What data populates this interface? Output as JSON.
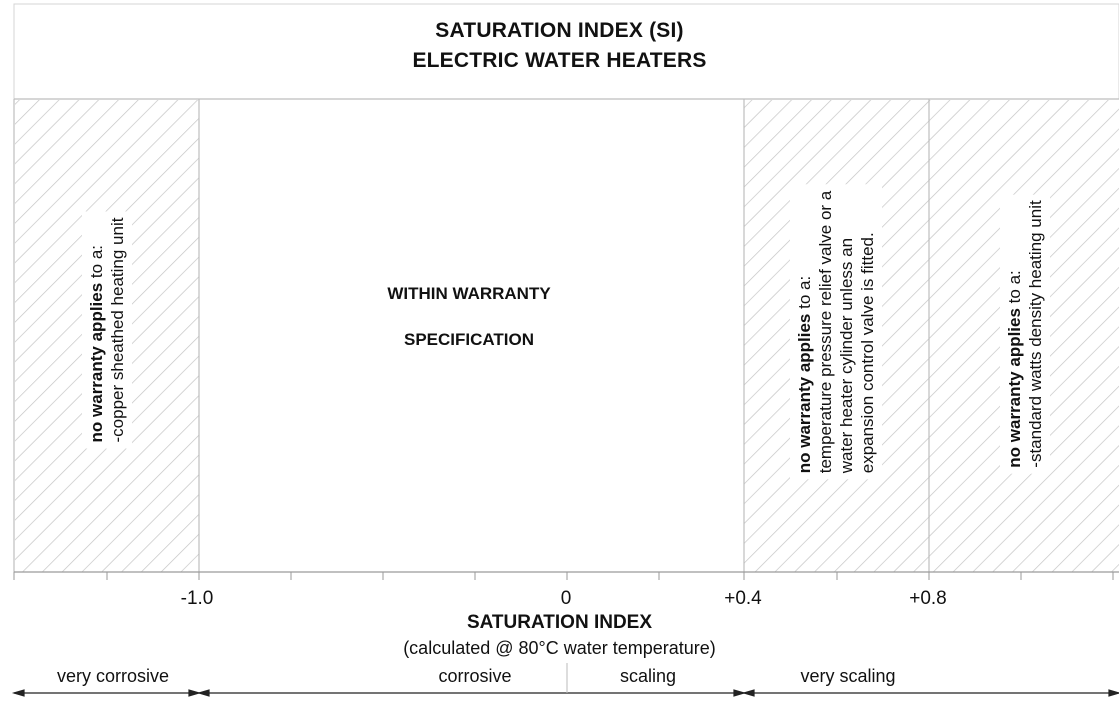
{
  "title": {
    "line1": "SATURATION INDEX (SI)",
    "line2": "ELECTRIC WATER HEATERS"
  },
  "zones": {
    "left": {
      "bold": "no warranty applies",
      "rest": " to a:",
      "line2": "-copper sheathed heating unit"
    },
    "center": {
      "line1": "WITHIN WARRANTY",
      "line2": "SPECIFICATION"
    },
    "right1": {
      "bold": "no warranty applies",
      "rest": " to a:",
      "line2": "temperature pressure relief valve or a",
      "line3": "water heater cylinder unless an",
      "line4": "expansion control valve is fitted."
    },
    "right2": {
      "bold": "no warranty applies",
      "rest": " to a:",
      "line2": "-standard watts density heating unit"
    }
  },
  "axis": {
    "ticks": [
      "-1.0",
      "0",
      "+0.4",
      "+0.8"
    ],
    "title": "SATURATION INDEX",
    "subtitle": "(calculated @ 80°C water temperature)"
  },
  "ranges": {
    "very_corrosive": "very corrosive",
    "corrosive": "corrosive",
    "scaling": "scaling",
    "very_scaling": "very scaling"
  },
  "colors": {
    "line": "#bdbdbd",
    "hatch": "#c4c4c4",
    "text": "#111111"
  }
}
